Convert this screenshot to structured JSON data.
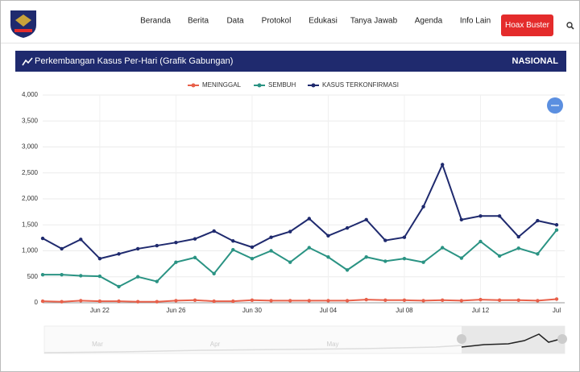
{
  "nav": {
    "items": [
      "Beranda",
      "Berita",
      "Data",
      "Protokol",
      "Edukasi",
      "Tanya Jawab",
      "Agenda",
      "Info Lain"
    ],
    "button": "Hoax Buster"
  },
  "slider": {
    "labels": [
      "Mar",
      "Apr",
      "May"
    ]
  },
  "chart_data": {
    "type": "line",
    "title": "Perkembangan Kasus Per-Hari (Grafik Gabungan)",
    "subtitle": "NASIONAL",
    "categories": [
      null,
      null,
      null,
      "Jun 22",
      null,
      null,
      null,
      "Jun 26",
      null,
      null,
      null,
      "Jun 30",
      null,
      null,
      null,
      "Jul 04",
      null,
      null,
      null,
      "Jul 08",
      null,
      null,
      null,
      "Jul 12",
      null,
      null,
      null,
      "Jul"
    ],
    "series": [
      {
        "name": "MENINGGAL",
        "color": "#e8604a",
        "values": [
          30,
          20,
          40,
          30,
          30,
          20,
          20,
          40,
          50,
          30,
          30,
          50,
          40,
          40,
          40,
          40,
          40,
          60,
          50,
          50,
          40,
          50,
          40,
          60,
          50,
          50,
          40,
          70
        ]
      },
      {
        "name": "SEMBUH",
        "color": "#2a9383",
        "values": [
          540,
          540,
          520,
          510,
          310,
          500,
          410,
          780,
          870,
          560,
          1020,
          850,
          1000,
          780,
          1060,
          880,
          630,
          880,
          800,
          850,
          780,
          1060,
          860,
          1180,
          900,
          1050,
          940,
          1400
        ]
      },
      {
        "name": "KASUS TERKONFIRMASI",
        "color": "#1f2a6e",
        "values": [
          1240,
          1040,
          1220,
          850,
          940,
          1040,
          1100,
          1160,
          1230,
          1380,
          1190,
          1070,
          1260,
          1370,
          1620,
          1290,
          1440,
          1600,
          1200,
          1260,
          1850,
          2660,
          1600,
          1670,
          1670,
          1270,
          1580,
          1500
        ]
      }
    ],
    "ylim": [
      0,
      4000
    ],
    "yticks": [
      0,
      500,
      {
        "value": 1000,
        "label": "1,000"
      },
      {
        "value": 1500,
        "label": "1,500"
      },
      {
        "value": 2000,
        "label": "2,000"
      },
      {
        "value": 2500,
        "label": "2,500"
      },
      {
        "value": 3000,
        "label": "3,000"
      },
      {
        "value": 3500,
        "label": "3,500"
      },
      {
        "value": 4000,
        "label": "4,000"
      }
    ],
    "grid": true
  }
}
